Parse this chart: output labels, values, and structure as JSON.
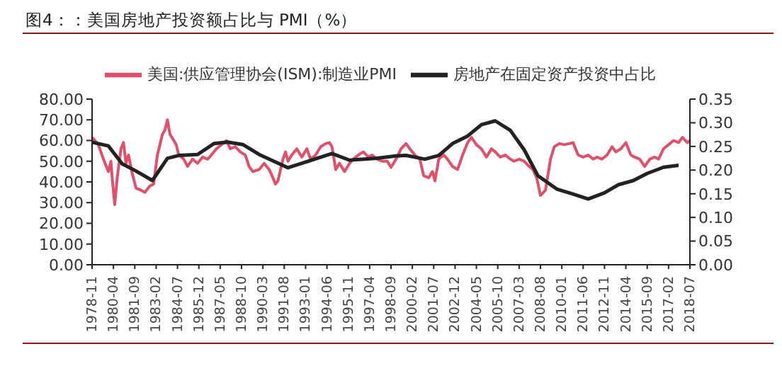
{
  "chart_data": {
    "type": "line",
    "title": "图4：：美国房地产投资额占比与 PMI（%）",
    "legend": "top",
    "marker": "none",
    "line_style": "solid",
    "grid": false,
    "xlim": [
      "1978-11",
      "2018-07"
    ],
    "xticks": [
      "1978-11",
      "1980-04",
      "1981-09",
      "1983-02",
      "1984-07",
      "1985-12",
      "1987-05",
      "1988-10",
      "1990-03",
      "1991-08",
      "1993-01",
      "1994-06",
      "1995-11",
      "1997-04",
      "1998-09",
      "2000-02",
      "2001-07",
      "2002-12",
      "2004-05",
      "2005-10",
      "2007-03",
      "2008-08",
      "2010-01",
      "2011-06",
      "2012-11",
      "2014-04",
      "2015-09",
      "2017-02",
      "2018-07"
    ],
    "ylim": [
      0,
      80
    ],
    "yticks": [
      {
        "value": 0,
        "label": "0.00"
      },
      {
        "value": 10,
        "label": "10.00"
      },
      {
        "value": 20,
        "label": "20.00"
      },
      {
        "value": 30,
        "label": "30.00"
      },
      {
        "value": 40,
        "label": "40.00"
      },
      {
        "value": 50,
        "label": "50.00"
      },
      {
        "value": 60,
        "label": "60.00"
      },
      {
        "value": 70,
        "label": "70.00"
      },
      {
        "value": 80,
        "label": "80.00"
      }
    ],
    "y2lim": [
      0,
      0.35
    ],
    "y2ticks": [
      {
        "value": 0,
        "label": "0.00"
      },
      {
        "value": 0.05,
        "label": "0.05"
      },
      {
        "value": 0.1,
        "label": "0.10"
      },
      {
        "value": 0.15,
        "label": "0.15"
      },
      {
        "value": 0.2,
        "label": "0.20"
      },
      {
        "value": 0.25,
        "label": "0.25"
      },
      {
        "value": 0.3,
        "label": "0.30"
      },
      {
        "value": 0.35,
        "label": "0.35"
      }
    ],
    "series": [
      {
        "name": "美国:供应管理协会(ISM):制造业PMI",
        "color": "#e0506a",
        "x": [
          "1978-11",
          "1979-04",
          "1979-08",
          "1979-12",
          "1980-02",
          "1980-03",
          "1980-05",
          "1980-07",
          "1980-10",
          "1980-12",
          "1981-02",
          "1981-04",
          "1981-07",
          "1981-10",
          "1982-02",
          "1982-05",
          "1982-09",
          "1982-12",
          "1983-03",
          "1983-07",
          "1983-09",
          "1983-11",
          "1984-01",
          "1984-03",
          "1984-06",
          "1984-08",
          "1984-12",
          "1985-03",
          "1985-07",
          "1985-11",
          "1986-03",
          "1986-07",
          "1986-10",
          "1987-02",
          "1987-06",
          "1987-10",
          "1988-01",
          "1988-05",
          "1988-09",
          "1989-01",
          "1989-04",
          "1989-07",
          "1989-12",
          "1990-04",
          "1990-08",
          "1990-11",
          "1991-01",
          "1991-03",
          "1991-07",
          "1991-09",
          "1991-11",
          "1992-02",
          "1992-06",
          "1992-10",
          "1993-02",
          "1993-05",
          "1993-09",
          "1994-01",
          "1994-05",
          "1994-08",
          "1994-10",
          "1995-01",
          "1995-04",
          "1995-08",
          "1995-12",
          "1996-03",
          "1996-07",
          "1996-11",
          "1997-03",
          "1997-06",
          "1997-10",
          "1998-02",
          "1998-06",
          "1998-09",
          "1999-01",
          "1999-05",
          "1999-09",
          "1999-12",
          "2000-04",
          "2000-08",
          "2000-11",
          "2001-03",
          "2001-06",
          "2001-08",
          "2001-11",
          "2002-03",
          "2002-06",
          "2002-10",
          "2003-02",
          "2003-06",
          "2003-10",
          "2004-01",
          "2004-05",
          "2004-09",
          "2005-01",
          "2005-05",
          "2005-08",
          "2005-12",
          "2006-04",
          "2006-08",
          "2006-11",
          "2007-03",
          "2007-07",
          "2007-11",
          "2008-02",
          "2008-05",
          "2008-08",
          "2008-12",
          "2009-04",
          "2009-07",
          "2009-11",
          "2010-03",
          "2010-07",
          "2010-10",
          "2011-02",
          "2011-06",
          "2011-10",
          "2012-02",
          "2012-05",
          "2012-09",
          "2013-01",
          "2013-05",
          "2013-08",
          "2013-12",
          "2014-04",
          "2014-08",
          "2014-11",
          "2015-03",
          "2015-07",
          "2015-11",
          "2016-03",
          "2016-06",
          "2016-10",
          "2017-02",
          "2017-06",
          "2017-10",
          "2018-01",
          "2018-05",
          "2018-07"
        ],
        "values": [
          61.5,
          58,
          51,
          45,
          50,
          42,
          29,
          42,
          56,
          59,
          49,
          53,
          44,
          37,
          36,
          35,
          38,
          39,
          53,
          63,
          65,
          70,
          63,
          61,
          58,
          53,
          51,
          47.5,
          51,
          49,
          52,
          51,
          53,
          56,
          58,
          60,
          56,
          57,
          54.5,
          53,
          47.5,
          45,
          46,
          49,
          46,
          42,
          39,
          40.5,
          51,
          54.5,
          50,
          53,
          56,
          52,
          56,
          51,
          53,
          57,
          58.5,
          59,
          57,
          46,
          49,
          45,
          49,
          51,
          53,
          54.5,
          52,
          53,
          51,
          50,
          50,
          47,
          51,
          56,
          58.5,
          56,
          53,
          51,
          43,
          42,
          45,
          40.5,
          51,
          53,
          51,
          47.5,
          46,
          53,
          59,
          61.5,
          58,
          56,
          52,
          56,
          54.5,
          52,
          53,
          51,
          50,
          51,
          50,
          47.5,
          46,
          42,
          33.5,
          36,
          51,
          57,
          58.5,
          58,
          58.5,
          59,
          53,
          52,
          53,
          51,
          52,
          51,
          53,
          57,
          54.5,
          56,
          59,
          53,
          52,
          51,
          47.5,
          51,
          52,
          51,
          56,
          58,
          60,
          59,
          61.5,
          59,
          60
        ]
      },
      {
        "name": "房地产在固定资产投资中占比",
        "color": "#222222",
        "axis": "y2",
        "x": [
          "1978-11",
          "1979-12",
          "1980-11",
          "1981-10",
          "1982-11",
          "1983-11",
          "1984-08",
          "1985-11",
          "1986-12",
          "1987-11",
          "1988-11",
          "1989-12",
          "1991-11",
          "1993-02",
          "1994-10",
          "1995-12",
          "1997-10",
          "1999-01",
          "1999-09",
          "2000-12",
          "2001-11",
          "2002-10",
          "2003-10",
          "2004-09",
          "2005-08",
          "2006-08",
          "2007-07",
          "2008-06",
          "2009-09",
          "2010-09",
          "2011-10",
          "2012-11",
          "2013-10",
          "2014-10",
          "2015-09",
          "2016-10",
          "2017-10"
        ],
        "values": [
          0.259,
          0.251,
          0.213,
          0.198,
          0.178,
          0.225,
          0.231,
          0.233,
          0.256,
          0.259,
          0.254,
          0.233,
          0.205,
          0.218,
          0.235,
          0.221,
          0.225,
          0.23,
          0.231,
          0.223,
          0.231,
          0.256,
          0.272,
          0.296,
          0.304,
          0.284,
          0.243,
          0.188,
          0.16,
          0.15,
          0.139,
          0.152,
          0.169,
          0.178,
          0.193,
          0.206,
          0.21
        ]
      }
    ]
  }
}
